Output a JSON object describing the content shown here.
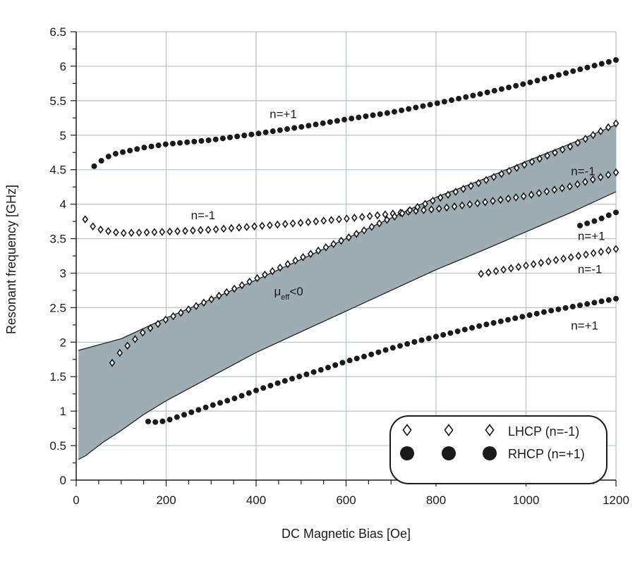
{
  "chart_data": {
    "type": "scatter",
    "title": "",
    "xlabel": "DC Magnetic Bias [Oe]",
    "ylabel": "Resonant frequency [GHz]",
    "xlim": [
      0,
      1200
    ],
    "ylim": [
      0,
      6.5
    ],
    "xticks": [
      0,
      200,
      400,
      600,
      800,
      1000,
      1200
    ],
    "yticks": [
      0,
      0.5,
      1,
      1.5,
      2,
      2.5,
      3,
      3.5,
      4,
      4.5,
      5,
      5.5,
      6,
      6.5
    ],
    "xtick_labels": [
      "0",
      "200",
      "400",
      "600",
      "800",
      "1000",
      "1200"
    ],
    "ytick_labels": [
      "0",
      "0.5",
      "1",
      "1.5",
      "2",
      "2.5",
      "3",
      "3.5",
      "4",
      "4.5",
      "5",
      "5.5",
      "6",
      "6.5"
    ],
    "grid": true,
    "colors": {
      "band_fill": "#9eadb4",
      "marker": "#1a1a1a",
      "grid": "#b3c2cc",
      "axis": "#1a1a1a"
    },
    "region": {
      "name": "negative permeability band",
      "upper_x": [
        5,
        100,
        200,
        300,
        400,
        500,
        600,
        700,
        800,
        900,
        1000,
        1100,
        1200
      ],
      "upper_y": [
        1.88,
        2.05,
        2.35,
        2.62,
        2.9,
        3.2,
        3.5,
        3.8,
        4.1,
        4.35,
        4.62,
        4.88,
        5.15
      ],
      "lower_x": [
        5,
        20,
        60,
        100,
        150,
        200,
        300,
        400,
        500,
        600,
        700,
        800,
        900,
        1000,
        1100,
        1200
      ],
      "lower_y": [
        0.3,
        0.35,
        0.55,
        0.72,
        0.95,
        1.15,
        1.5,
        1.85,
        2.15,
        2.45,
        2.75,
        3.05,
        3.32,
        3.6,
        3.88,
        4.18
      ]
    },
    "series": [
      {
        "name": "n=+1 upper",
        "marker": "circle",
        "x": [
          40,
          60,
          80,
          100,
          150,
          200,
          300,
          400,
          500,
          600,
          700,
          800,
          900,
          1000,
          1100,
          1200
        ],
        "y": [
          4.55,
          4.65,
          4.72,
          4.75,
          4.82,
          4.87,
          4.93,
          5.02,
          5.12,
          5.23,
          5.33,
          5.46,
          5.6,
          5.75,
          5.92,
          6.09
        ]
      },
      {
        "name": "n=-1 upper",
        "marker": "diamond",
        "x": [
          20,
          40,
          60,
          80,
          100,
          150,
          200,
          300,
          400,
          500,
          600,
          700,
          750,
          800,
          900,
          1000,
          1100,
          1150,
          1200
        ],
        "y": [
          3.78,
          3.66,
          3.62,
          3.6,
          3.58,
          3.59,
          3.6,
          3.63,
          3.68,
          3.73,
          3.79,
          3.86,
          3.9,
          3.93,
          4.02,
          4.12,
          4.26,
          4.36,
          4.46
        ]
      },
      {
        "name": "n=-1 crossing",
        "marker": "diamond",
        "x": [
          80,
          100,
          150,
          200,
          300,
          400,
          500,
          600,
          700,
          800,
          900,
          1000,
          1100,
          1200
        ],
        "y": [
          1.7,
          1.87,
          2.15,
          2.33,
          2.62,
          2.92,
          3.22,
          3.5,
          3.8,
          4.07,
          4.32,
          4.58,
          4.84,
          5.17
        ]
      },
      {
        "name": "n=+1 small",
        "marker": "circle",
        "x": [
          1120,
          1140,
          1160,
          1180,
          1200
        ],
        "y": [
          3.69,
          3.73,
          3.77,
          3.83,
          3.88
        ]
      },
      {
        "name": "n=-1 lower",
        "marker": "diamond",
        "x": [
          900,
          950,
          1000,
          1050,
          1100,
          1150,
          1200
        ],
        "y": [
          2.99,
          3.05,
          3.11,
          3.17,
          3.23,
          3.29,
          3.35
        ]
      },
      {
        "name": "n=+1 lower",
        "marker": "circle",
        "x": [
          160,
          180,
          200,
          250,
          300,
          350,
          400,
          450,
          500,
          550,
          600,
          650,
          700,
          750,
          800,
          850,
          900,
          950,
          1000,
          1050,
          1100,
          1150,
          1200
        ],
        "y": [
          0.85,
          0.84,
          0.86,
          0.97,
          1.08,
          1.18,
          1.3,
          1.41,
          1.51,
          1.61,
          1.72,
          1.81,
          1.91,
          2.0,
          2.08,
          2.16,
          2.24,
          2.31,
          2.38,
          2.45,
          2.51,
          2.57,
          2.63
        ]
      }
    ],
    "annotations": [
      {
        "text": "n=+1",
        "x": 430,
        "y": 5.25
      },
      {
        "text": "n=-1",
        "x": 255,
        "y": 3.78
      },
      {
        "text": "n=-1",
        "x": 1100,
        "y": 4.42
      },
      {
        "text": "n=+1",
        "x": 1115,
        "y": 3.48
      },
      {
        "text": "n=-1",
        "x": 1115,
        "y": 3.0
      },
      {
        "text": "n=+1",
        "x": 1100,
        "y": 2.18
      }
    ],
    "region_label": {
      "main": "μ",
      "sub": "eff",
      "rest": "<0",
      "x": 440,
      "y": 2.68
    },
    "legend": {
      "position": "bottom-right",
      "items": [
        {
          "label": "LHCP (n=-1)",
          "marker": "diamond"
        },
        {
          "label": "RHCP (n=+1)",
          "marker": "circle"
        }
      ]
    }
  }
}
